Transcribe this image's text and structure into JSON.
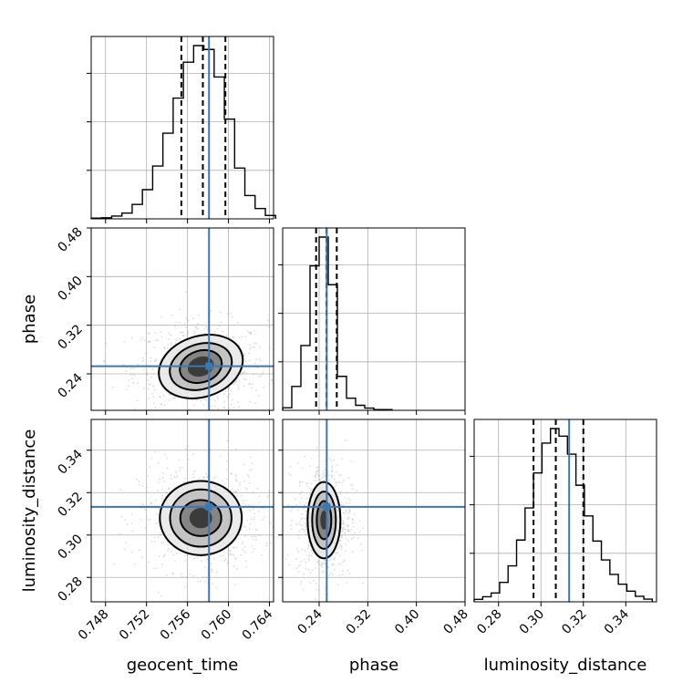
{
  "chart_data": {
    "type": "corner",
    "parameters": [
      {
        "name": "geocent_time",
        "label": "geocent_time",
        "range": [
          0.7466,
          0.7644
        ],
        "ticks": [
          0.748,
          0.752,
          0.756,
          0.76,
          0.764
        ],
        "tick_labels": [
          "0.748",
          "0.752",
          "0.756",
          "0.760",
          "0.764"
        ],
        "truth": 0.7581,
        "quantiles": [
          0.7554,
          0.7575,
          0.7597
        ],
        "hist_centers": [
          0.7471,
          0.7481,
          0.7491,
          0.7501,
          0.7511,
          0.7521,
          0.7531,
          0.7541,
          0.7551,
          0.7561,
          0.7571,
          0.7581,
          0.7591,
          0.7601,
          0.7611,
          0.7621,
          0.7631,
          0.7641
        ],
        "hist_counts": [
          0.4,
          0.6,
          1.5,
          3.1,
          7.8,
          15.8,
          28.6,
          46.4,
          65.4,
          84.8,
          93.8,
          91.7,
          76.8,
          54.0,
          27.5,
          12.6,
          5.6,
          1.8
        ]
      },
      {
        "name": "phase",
        "label": "phase",
        "range": [
          0.18,
          0.48
        ],
        "ticks": [
          0.24,
          0.32,
          0.4,
          0.48
        ],
        "tick_labels": [
          "0.24",
          "0.32",
          "0.40",
          "0.48"
        ],
        "truth": 0.2525,
        "quantiles": [
          0.235,
          0.2522,
          0.269
        ],
        "hist_centers": [
          0.1875,
          0.2025,
          0.2175,
          0.2325,
          0.2475,
          0.2625,
          0.2775,
          0.2925,
          0.3075,
          0.3225,
          0.3375,
          0.3525
        ],
        "hist_counts": [
          1.5,
          13.8,
          37.4,
          83.4,
          100.0,
          72.5,
          19.6,
          7.0,
          2.9,
          1.3,
          0.4,
          0.4
        ]
      },
      {
        "name": "luminosity_distance",
        "label": "luminosity_distance",
        "range": [
          0.2685,
          0.3545
        ],
        "ticks": [
          0.28,
          0.3,
          0.32,
          0.34
        ],
        "tick_labels": [
          "0.28",
          "0.30",
          "0.32",
          "0.34"
        ],
        "truth": 0.3133,
        "quantiles": [
          0.2965,
          0.307,
          0.32
        ],
        "hist_centers": [
          0.2705,
          0.2745,
          0.2785,
          0.2825,
          0.2865,
          0.2905,
          0.2945,
          0.2985,
          0.3025,
          0.3065,
          0.3105,
          0.3145,
          0.3185,
          0.3225,
          0.3265,
          0.3305,
          0.3345,
          0.3385,
          0.3425,
          0.3465,
          0.3505
        ],
        "hist_counts": [
          1.2,
          2.5,
          4.3,
          9.5,
          17.6,
          30.2,
          45.9,
          63.0,
          77.6,
          84.7,
          81.0,
          72.2,
          57.0,
          42.0,
          29.7,
          20.5,
          13.4,
          8.6,
          5.2,
          2.7,
          1.3
        ]
      }
    ],
    "joint": [
      {
        "x": "geocent_time",
        "y": "phase",
        "center": [
          0.7573,
          0.252
        ],
        "contour_levels": [
          {
            "sx": 0.0013,
            "sy": 0.016,
            "rot": -18
          },
          {
            "sx": 0.0021,
            "sy": 0.026,
            "rot": -18
          },
          {
            "sx": 0.0031,
            "sy": 0.037,
            "rot": -18
          },
          {
            "sx": 0.0042,
            "sy": 0.05,
            "rot": -18
          }
        ],
        "scatter_spread": [
          0.0026,
          0.03
        ]
      },
      {
        "x": "geocent_time",
        "y": "luminosity_distance",
        "center": [
          0.7573,
          0.308
        ],
        "contour_levels": [
          {
            "sx": 0.0011,
            "sy": 0.0048,
            "rot": 0
          },
          {
            "sx": 0.002,
            "sy": 0.0085,
            "rot": 0
          },
          {
            "sx": 0.003,
            "sy": 0.0135,
            "rot": 0
          },
          {
            "sx": 0.004,
            "sy": 0.0175,
            "rot": 0
          }
        ],
        "scatter_spread": [
          0.0024,
          0.01
        ]
      },
      {
        "x": "phase",
        "y": "luminosity_distance",
        "center": [
          0.248,
          0.307
        ],
        "contour_levels": [
          {
            "sx": 0.006,
            "sy": 0.0045,
            "rot": 0
          },
          {
            "sx": 0.012,
            "sy": 0.009,
            "rot": 0
          },
          {
            "sx": 0.0195,
            "sy": 0.0135,
            "rot": 0
          },
          {
            "sx": 0.027,
            "sy": 0.018,
            "rot": 0
          }
        ],
        "scatter_spread": [
          0.018,
          0.011
        ]
      }
    ],
    "colors": {
      "truth": "#3b78b0",
      "contour": "#000000",
      "scatter": "#9a9a9a",
      "grid": "#b0b0b0"
    },
    "grid": true
  }
}
